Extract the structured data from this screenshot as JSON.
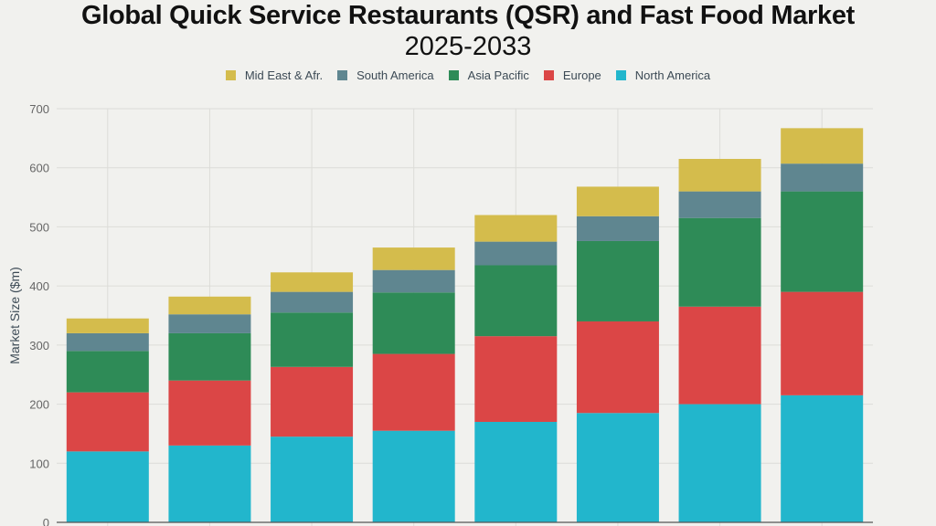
{
  "chart_data": {
    "type": "bar",
    "stacked": true,
    "title_line1": "Global Quick Service Restaurants (QSR) and Fast Food Market",
    "title_line2": "2025-2033",
    "xlabel": "",
    "ylabel": "Market Size ($m)",
    "ylim": [
      0,
      700
    ],
    "yticks": [
      "0",
      "100",
      "200",
      "300",
      "400",
      "500",
      "600",
      "700"
    ],
    "grid": true,
    "legend_position": "top",
    "bar_count": 8,
    "series": [
      {
        "name": "North America",
        "color": "#22b6cc",
        "values": [
          120,
          130,
          145,
          155,
          170,
          185,
          200,
          215
        ]
      },
      {
        "name": "Europe",
        "color": "#db4646",
        "values": [
          100,
          110,
          118,
          130,
          145,
          155,
          165,
          175
        ]
      },
      {
        "name": "Asia Pacific",
        "color": "#2e8b57",
        "values": [
          70,
          80,
          92,
          104,
          120,
          136,
          150,
          170
        ]
      },
      {
        "name": "South America",
        "color": "#5f8690",
        "values": [
          30,
          32,
          35,
          38,
          40,
          42,
          45,
          47
        ]
      },
      {
        "name": "Mid East & Afr.",
        "color": "#d4bc4c",
        "values": [
          25,
          30,
          33,
          38,
          45,
          50,
          55,
          60
        ]
      }
    ],
    "legend_order": [
      4,
      3,
      2,
      1,
      0
    ]
  }
}
